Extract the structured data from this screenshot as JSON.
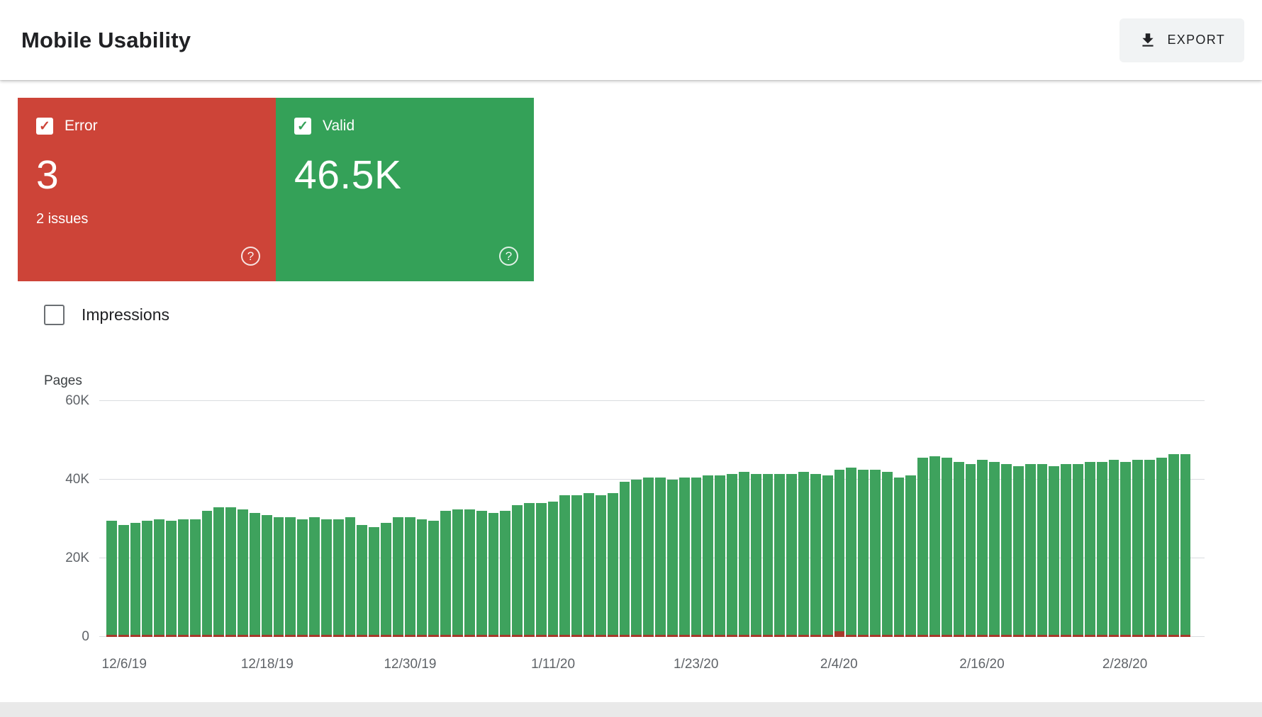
{
  "header": {
    "title": "Mobile Usability",
    "export_label": "EXPORT"
  },
  "icons": {
    "download": "download-tray-arrow",
    "help": "?",
    "check": "✓"
  },
  "cards": {
    "error": {
      "label": "Error",
      "value": "3",
      "issues_text": "2 issues",
      "checked": true,
      "color": "#cd4438"
    },
    "valid": {
      "label": "Valid",
      "value": "46.5K",
      "checked": true,
      "color": "#34a158"
    }
  },
  "impressions": {
    "label": "Impressions",
    "checked": false
  },
  "chart_data": {
    "type": "bar",
    "title": "Mobile usability valid vs error pages over time",
    "xlabel": "",
    "ylabel": "Pages",
    "ylim": [
      0,
      60000
    ],
    "grid": true,
    "legend": "none",
    "yticks": [
      {
        "value": 0,
        "label": "0"
      },
      {
        "value": 20000,
        "label": "20K"
      },
      {
        "value": 40000,
        "label": "40K"
      },
      {
        "value": 60000,
        "label": "60K"
      }
    ],
    "x_ticks": [
      {
        "index": 1,
        "label": "12/6/19"
      },
      {
        "index": 13,
        "label": "12/18/19"
      },
      {
        "index": 25,
        "label": "12/30/19"
      },
      {
        "index": 37,
        "label": "1/11/20"
      },
      {
        "index": 49,
        "label": "1/23/20"
      },
      {
        "index": 61,
        "label": "2/4/20"
      },
      {
        "index": 73,
        "label": "2/16/20"
      },
      {
        "index": 85,
        "label": "2/28/20"
      }
    ],
    "series": [
      {
        "name": "Valid pages",
        "color": "#3ea25d",
        "values": [
          29500,
          28500,
          29000,
          29500,
          30000,
          29500,
          30000,
          30000,
          32000,
          33000,
          33000,
          32500,
          31500,
          31000,
          30500,
          30500,
          30000,
          30500,
          30000,
          30000,
          30500,
          28500,
          28000,
          29000,
          30500,
          30500,
          30000,
          29500,
          32000,
          32500,
          32500,
          32000,
          31500,
          32000,
          33500,
          34000,
          34000,
          34500,
          36000,
          36000,
          36500,
          36000,
          36500,
          39500,
          40000,
          40500,
          40500,
          40000,
          40500,
          40500,
          41000,
          41000,
          41500,
          42000,
          41500,
          41500,
          41500,
          41500,
          42000,
          41500,
          41000,
          42500,
          43000,
          42500,
          42500,
          42000,
          40500,
          41000,
          45500,
          46000,
          45500,
          44500,
          44000,
          45000,
          44500,
          44000,
          43500,
          44000,
          44000,
          43500,
          44000,
          44000,
          44500,
          44500,
          45000,
          44500,
          45000,
          45000,
          45500,
          46500,
          46500
        ]
      },
      {
        "name": "Error pages",
        "color": "#a8392c",
        "constant_value": 3,
        "spike_index": 61
      }
    ]
  }
}
